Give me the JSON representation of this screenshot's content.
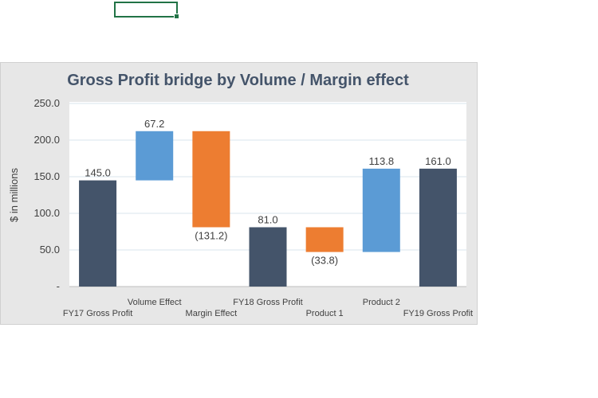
{
  "chart_data": {
    "type": "bar",
    "subtype": "waterfall",
    "title": "Gross Profit bridge by Volume / Margin effect",
    "ylabel": "$ in millions",
    "xlabel": "",
    "ylim": [
      0,
      250
    ],
    "yticks": [
      0,
      50,
      100,
      150,
      200,
      250
    ],
    "ytick_labels": [
      "-",
      "50.0",
      "100.0",
      "150.0",
      "200.0",
      "250.0"
    ],
    "grid": true,
    "legend": "none",
    "categories": [
      "FY17 Gross Profit",
      "Volume Effect",
      "Margin Effect",
      "FY18 Gross Profit",
      "Product 1",
      "Product 2",
      "FY19 Gross Profit"
    ],
    "bars": [
      {
        "category": "FY17 Gross Profit",
        "kind": "total",
        "base": 0,
        "top": 145.0,
        "label": "145.0",
        "label_pos": "above"
      },
      {
        "category": "Volume Effect",
        "kind": "increase",
        "base": 145.0,
        "top": 212.2,
        "label": "67.2",
        "label_pos": "above"
      },
      {
        "category": "Margin Effect",
        "kind": "decrease",
        "base": 81.0,
        "top": 212.2,
        "label": "(131.2)",
        "label_pos": "below"
      },
      {
        "category": "FY18 Gross Profit",
        "kind": "total",
        "base": 0,
        "top": 81.0,
        "label": "81.0",
        "label_pos": "above"
      },
      {
        "category": "Product 1",
        "kind": "decrease",
        "base": 47.2,
        "top": 81.0,
        "label": "(33.8)",
        "label_pos": "below"
      },
      {
        "category": "Product 2",
        "kind": "increase",
        "base": 47.2,
        "top": 161.0,
        "label": "113.8",
        "label_pos": "above"
      },
      {
        "category": "FY19 Gross Profit",
        "kind": "total",
        "base": 0,
        "top": 161.0,
        "label": "161.0",
        "label_pos": "above"
      }
    ],
    "colors": {
      "total": "#44546a",
      "increase": "#5b9bd5",
      "decrease": "#ed7d31"
    }
  }
}
